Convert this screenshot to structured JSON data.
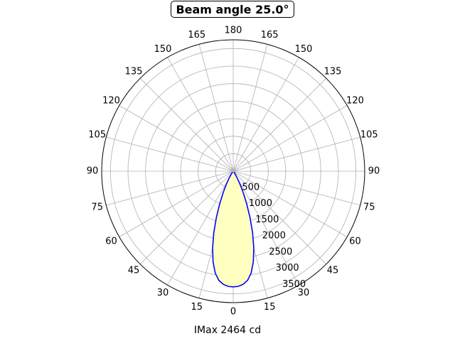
{
  "chart_data": {
    "type": "line",
    "polar": true,
    "title": "Beam angle 25.0°",
    "xlabel": "IMax 2464 cd",
    "angle_tick_labels": [
      "0",
      "15",
      "30",
      "45",
      "60",
      "75",
      "90",
      "105",
      "120",
      "135",
      "150",
      "165",
      "180",
      "165",
      "150",
      "135",
      "120",
      "105",
      "90",
      "75",
      "60",
      "45",
      "30",
      "15"
    ],
    "radial_tick_labels": [
      "500",
      "1000",
      "1500",
      "2000",
      "2500",
      "3000",
      "3500"
    ],
    "radial_ticks": [
      500,
      1000,
      1500,
      2000,
      2500,
      3000,
      3500
    ],
    "rlim": [
      0,
      3750
    ],
    "grid": true,
    "series_color": "#0000ff",
    "fill_color": "#ffffc0",
    "series": [
      {
        "x": [
          0,
          2.5,
          5,
          7.5,
          10,
          12.5,
          15,
          17.5,
          20,
          22.5,
          25,
          27.5,
          30,
          32.5,
          35
        ],
        "values": [
          3300,
          3290,
          3240,
          3140,
          2950,
          2650,
          2270,
          1840,
          1400,
          1000,
          680,
          430,
          250,
          120,
          30
        ]
      }
    ]
  }
}
